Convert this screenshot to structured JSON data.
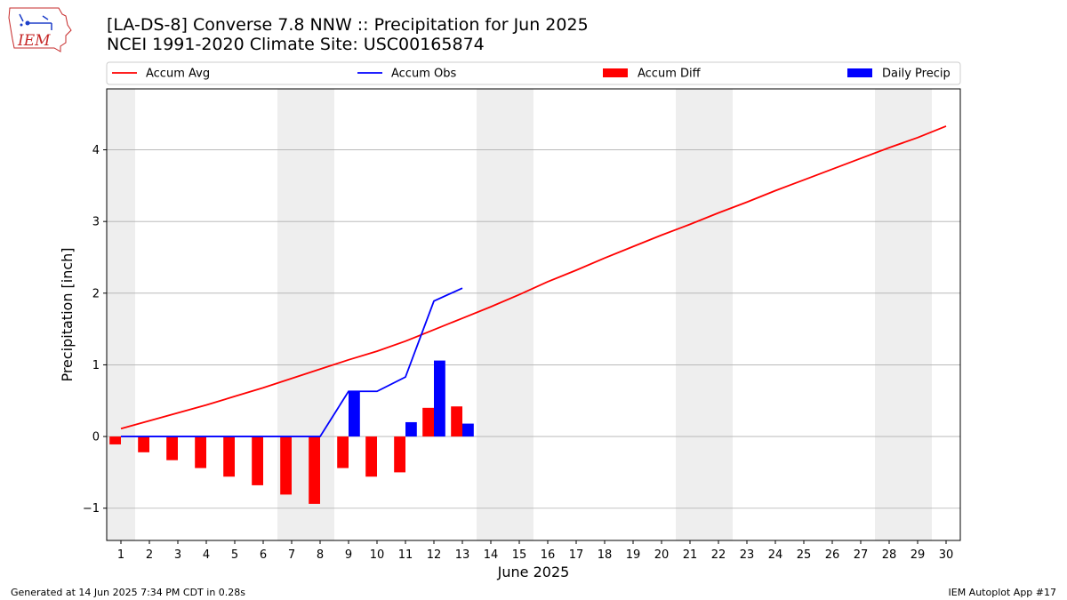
{
  "header": {
    "title_line1": "[LA-DS-8] Converse 7.8 NNW :: Precipitation for Jun 2025",
    "title_line2": "NCEI 1991-2020 Climate Site: USC00165874"
  },
  "logo": {
    "text": "IEM"
  },
  "footer": {
    "generated": "Generated at 14 Jun 2025 7:34 PM CDT in 0.28s",
    "app": "IEM Autoplot App #17"
  },
  "colors": {
    "avg": "#ff0000",
    "obs": "#0000ff",
    "diff": "#ff0000",
    "daily": "#0000ff",
    "weekend": "#eeeeee",
    "grid": "#b0b0b0"
  },
  "chart_data": {
    "type": "bar",
    "xlabel": "June 2025",
    "ylabel": "Precipitation [inch]",
    "xlim": [
      0.5,
      30.5
    ],
    "ylim": [
      -1.45,
      4.85
    ],
    "yticks": [
      -1,
      0,
      1,
      2,
      3,
      4
    ],
    "xticks": [
      1,
      2,
      3,
      4,
      5,
      6,
      7,
      8,
      9,
      10,
      11,
      12,
      13,
      14,
      15,
      16,
      17,
      18,
      19,
      20,
      21,
      22,
      23,
      24,
      25,
      26,
      27,
      28,
      29,
      30
    ],
    "shaded_days": [
      [
        1,
        1
      ],
      [
        7,
        8
      ],
      [
        14,
        15
      ],
      [
        21,
        22
      ],
      [
        28,
        29
      ]
    ],
    "grid": "horizontal",
    "legend": {
      "placement": "top",
      "items": [
        "Accum Avg",
        "Accum Obs",
        "Accum Diff",
        "Daily Precip"
      ]
    },
    "series": [
      {
        "name": "Accum Avg",
        "type": "line",
        "x": [
          1,
          2,
          3,
          4,
          5,
          6,
          7,
          8,
          9,
          10,
          11,
          12,
          13,
          14,
          15,
          16,
          17,
          18,
          19,
          20,
          21,
          22,
          23,
          24,
          25,
          26,
          27,
          28,
          29,
          30
        ],
        "values": [
          0.11,
          0.22,
          0.33,
          0.44,
          0.56,
          0.68,
          0.81,
          0.94,
          1.07,
          1.19,
          1.33,
          1.49,
          1.65,
          1.81,
          1.98,
          2.16,
          2.32,
          2.49,
          2.65,
          2.81,
          2.96,
          3.12,
          3.27,
          3.43,
          3.58,
          3.73,
          3.88,
          4.03,
          4.17,
          4.33
        ]
      },
      {
        "name": "Accum Obs",
        "type": "line",
        "x": [
          1,
          2,
          3,
          4,
          5,
          6,
          7,
          8,
          9,
          10,
          11,
          12,
          13
        ],
        "values": [
          0,
          0,
          0,
          0,
          0,
          0,
          0,
          0,
          0.63,
          0.63,
          0.83,
          1.89,
          2.07
        ]
      },
      {
        "name": "Accum Diff",
        "type": "bar",
        "x": [
          1,
          2,
          3,
          4,
          5,
          6,
          7,
          8,
          9,
          10,
          11,
          12,
          13
        ],
        "values": [
          -0.11,
          -0.22,
          -0.33,
          -0.44,
          -0.56,
          -0.68,
          -0.81,
          -0.94,
          -0.44,
          -0.56,
          -0.5,
          0.4,
          0.42
        ]
      },
      {
        "name": "Daily Precip",
        "type": "bar",
        "x": [
          1,
          2,
          3,
          4,
          5,
          6,
          7,
          8,
          9,
          10,
          11,
          12,
          13
        ],
        "values": [
          0,
          0,
          0,
          0,
          0,
          0,
          0,
          0,
          0.63,
          0,
          0.2,
          1.06,
          0.18
        ]
      }
    ]
  }
}
